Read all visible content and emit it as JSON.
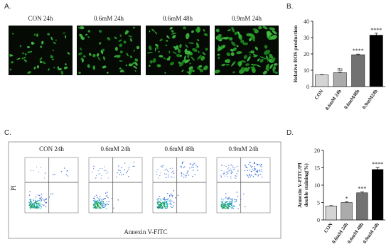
{
  "panels": {
    "A": {
      "label": "A.",
      "titles": [
        "CON 24h",
        "0.6mM 24h",
        "0.6mM 48h",
        "0.9mM 24h"
      ]
    },
    "C": {
      "label": "C.",
      "titles": [
        "CON 24h",
        "0.6mM 24h",
        "0.6mM 48h",
        "0.9mM 24h"
      ],
      "ylabel": "PI",
      "xlabel": "Annexin V-FITC"
    }
  },
  "chart_data": [
    {
      "type": "bar",
      "label": "B.",
      "ylabel": [
        "Relative ROS production"
      ],
      "categories": [
        "CON",
        "0.6mM 24h",
        "0.6mM48h",
        "0.9mM24h"
      ],
      "values": [
        7.2,
        8.5,
        19.5,
        31.5
      ],
      "errors": [
        0.2,
        0.3,
        0.4,
        1.2
      ],
      "significance": [
        null,
        "ns",
        "****",
        "****"
      ],
      "colors": [
        "#d4d4d4",
        "#ababab",
        "#727272",
        "#000000"
      ],
      "ylim": [
        0,
        40
      ],
      "yticks": [
        0,
        10,
        20,
        30,
        40
      ]
    },
    {
      "type": "bar",
      "label": "D.",
      "ylabel": [
        "Annexin V-FITC/PI",
        "double staining(%)"
      ],
      "categories": [
        "CON",
        "0.6mM 24h",
        "0.6mM 48h",
        "0.9mM 24h"
      ],
      "values": [
        4,
        5,
        7.8,
        14.5
      ],
      "errors": [
        0.1,
        0.2,
        0.3,
        0.6
      ],
      "significance": [
        null,
        "*",
        "***",
        "****"
      ],
      "colors": [
        "#d4d4d4",
        "#ababab",
        "#727272",
        "#000000"
      ],
      "ylim": [
        0,
        20
      ],
      "yticks": [
        0,
        5,
        10,
        15,
        20
      ]
    }
  ]
}
